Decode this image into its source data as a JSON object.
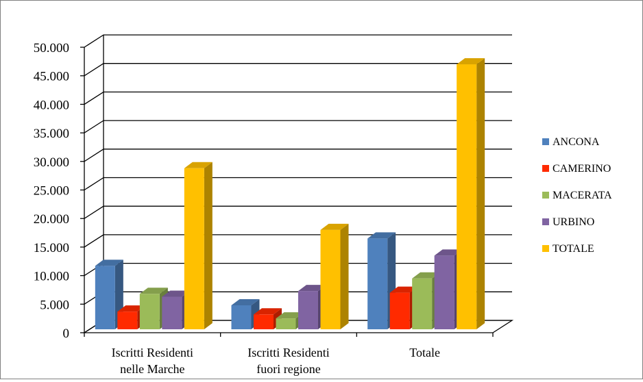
{
  "chart_data": {
    "type": "bar",
    "title": "",
    "xlabel": "",
    "ylabel": "",
    "ylim": [
      0,
      50000
    ],
    "ytick_labels": [
      "0",
      "5.000",
      "10.000",
      "15.000",
      "20.000",
      "25.000",
      "30.000",
      "35.000",
      "40.000",
      "45.000",
      "50.000"
    ],
    "ytick_values": [
      0,
      5000,
      10000,
      15000,
      20000,
      25000,
      30000,
      35000,
      40000,
      45000,
      50000
    ],
    "grid": true,
    "legend_position": "right",
    "categories": [
      [
        "Iscritti Residenti",
        "nelle Marche"
      ],
      [
        "Iscritti Residenti",
        "fuori regione"
      ],
      [
        "Totale"
      ]
    ],
    "series": [
      {
        "name": "ANCONA",
        "color": "#4F81BD",
        "values": [
          11700,
          4800,
          16500
        ]
      },
      {
        "name": "CAMERINO",
        "color": "#FF2A00",
        "values": [
          3700,
          3200,
          7000
        ]
      },
      {
        "name": "MACERATA",
        "color": "#9BBB59",
        "values": [
          6800,
          2500,
          9500
        ]
      },
      {
        "name": "URBINO",
        "color": "#8064A2",
        "values": [
          6300,
          7300,
          13500
        ]
      },
      {
        "name": "TOTALE",
        "color": "#FFC000",
        "values": [
          28800,
          18000,
          47000
        ]
      }
    ]
  }
}
